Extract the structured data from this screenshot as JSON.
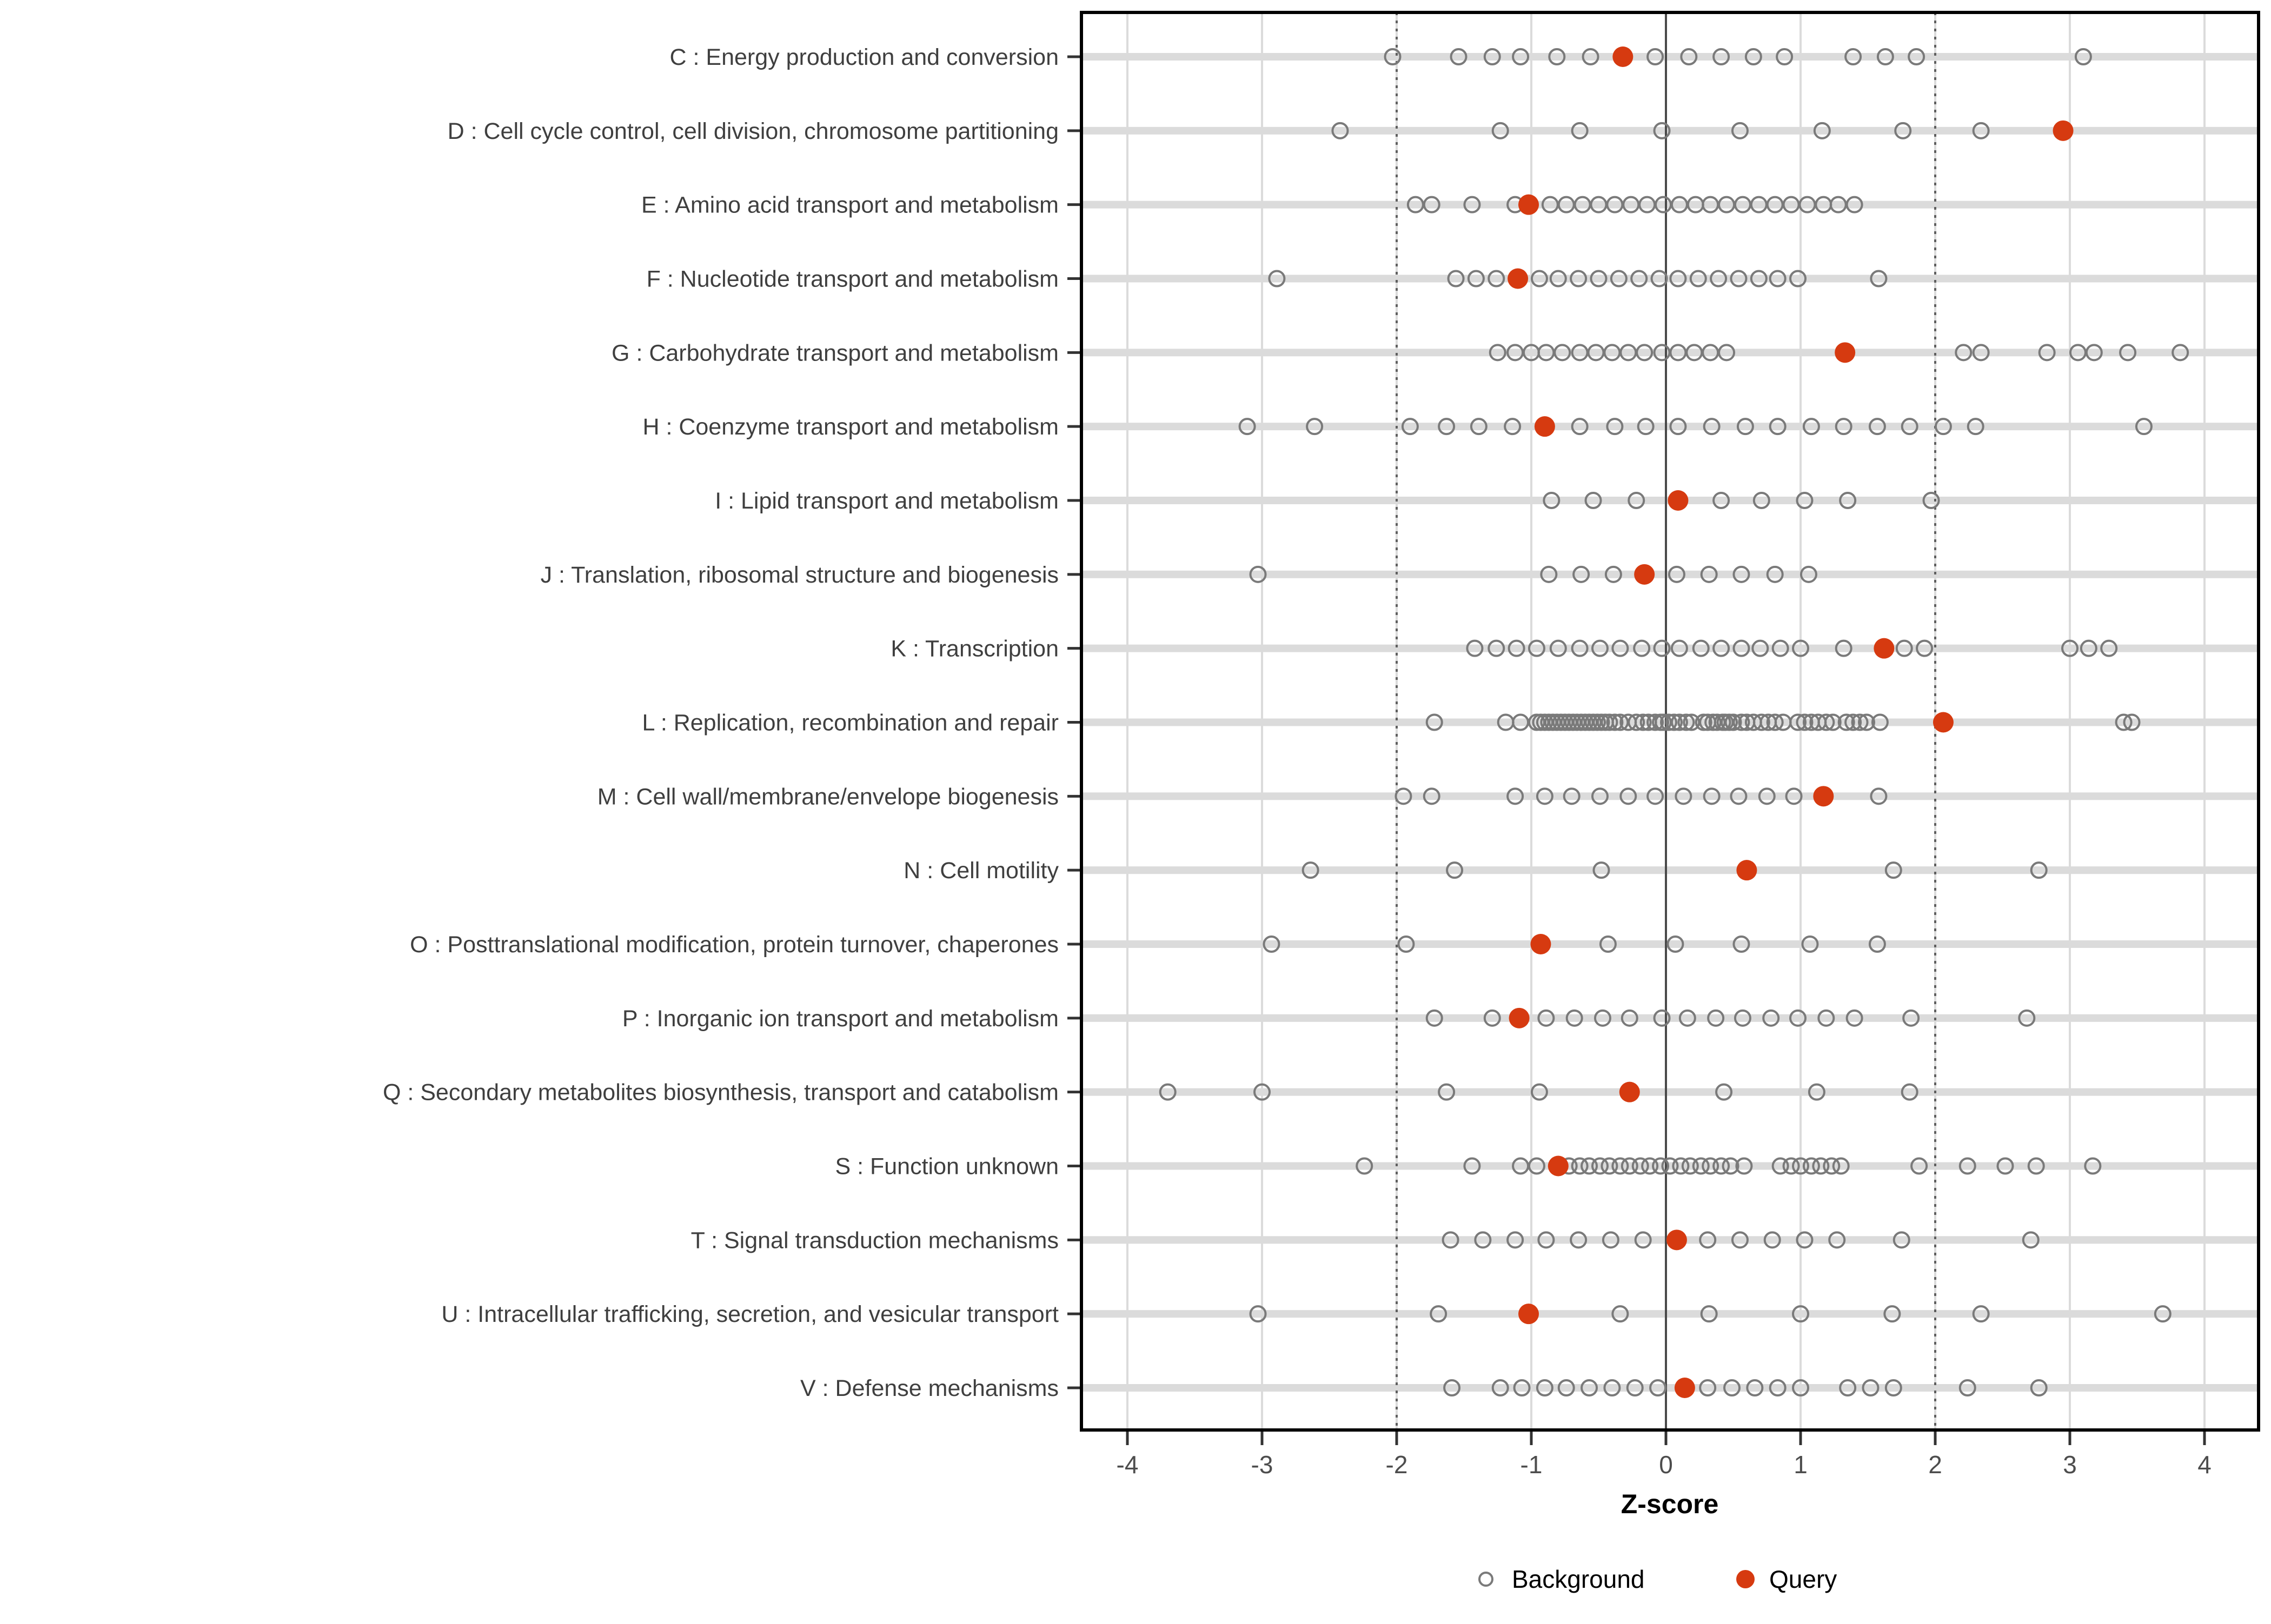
{
  "colors": {
    "query": "#D63A10",
    "background_stroke": "#7a7a7a",
    "grid": "#DBDBDB",
    "row_band": "#DBDBDB",
    "dotted_line": "#5f5f5f",
    "zero_line": "#4a4a4a",
    "panel_border": "#000000",
    "tick": "#333333"
  },
  "legend": {
    "background_label": "Background",
    "query_label": "Query"
  },
  "chart_data": {
    "type": "scatter",
    "title": "",
    "xlabel": "Z-score",
    "ylabel": "",
    "xlim": [
      -4.35,
      4.4
    ],
    "x_ticks": [
      -4,
      -3,
      -2,
      -1,
      0,
      1,
      2,
      3,
      4
    ],
    "grid": true,
    "legend_position": "bottom",
    "reference_lines": {
      "solid": [
        0
      ],
      "dotted": [
        -2,
        2
      ]
    },
    "series_legend": [
      "Background",
      "Query"
    ],
    "categories": [
      {
        "label": "C : Energy production and conversion",
        "query": -0.32,
        "background": [
          -2.03,
          -1.54,
          -1.29,
          -1.08,
          -0.81,
          -0.56,
          -0.08,
          0.17,
          0.41,
          0.65,
          0.88,
          1.39,
          1.63,
          1.86,
          3.1
        ]
      },
      {
        "label": "D : Cell cycle control, cell division, chromosome partitioning",
        "query": 2.95,
        "background": [
          -2.42,
          -1.23,
          -0.64,
          -0.03,
          0.55,
          1.16,
          1.76,
          2.34
        ]
      },
      {
        "label": "E : Amino acid transport and metabolism",
        "query": -1.02,
        "background": [
          -1.86,
          -1.74,
          -1.44,
          -1.12,
          -0.86,
          -0.74,
          -0.62,
          -0.5,
          -0.38,
          -0.26,
          -0.14,
          -0.02,
          0.1,
          0.22,
          0.33,
          0.45,
          0.57,
          0.69,
          0.81,
          0.93,
          1.05,
          1.17,
          1.28,
          1.4
        ]
      },
      {
        "label": "F : Nucleotide transport and metabolism",
        "query": -1.1,
        "background": [
          -2.89,
          -1.56,
          -1.41,
          -1.26,
          -0.94,
          -0.8,
          -0.65,
          -0.5,
          -0.35,
          -0.2,
          -0.05,
          0.09,
          0.24,
          0.39,
          0.54,
          0.69,
          0.83,
          0.98,
          1.58
        ]
      },
      {
        "label": "G : Carbohydrate transport and metabolism",
        "query": 1.33,
        "background": [
          -1.25,
          -1.12,
          -1.0,
          -0.89,
          -0.77,
          -0.64,
          -0.52,
          -0.4,
          -0.28,
          -0.16,
          -0.03,
          0.09,
          0.21,
          0.33,
          0.45,
          2.21,
          2.34,
          2.83,
          3.06,
          3.18,
          3.43,
          3.82
        ]
      },
      {
        "label": "H : Coenzyme transport and metabolism",
        "query": -0.9,
        "background": [
          -3.11,
          -2.61,
          -1.9,
          -1.63,
          -1.39,
          -1.14,
          -0.64,
          -0.38,
          -0.15,
          0.09,
          0.34,
          0.59,
          0.83,
          1.08,
          1.32,
          1.57,
          1.81,
          2.06,
          2.3,
          3.55
        ]
      },
      {
        "label": "I : Lipid transport and metabolism",
        "query": 0.09,
        "background": [
          -0.85,
          -0.54,
          -0.22,
          0.41,
          0.71,
          1.03,
          1.35,
          1.97
        ]
      },
      {
        "label": "J : Translation, ribosomal structure and biogenesis",
        "query": -0.16,
        "background": [
          -3.03,
          -0.87,
          -0.63,
          -0.39,
          0.08,
          0.32,
          0.56,
          0.81,
          1.06
        ]
      },
      {
        "label": "K : Transcription",
        "query": 1.62,
        "background": [
          -1.42,
          -1.26,
          -1.11,
          -0.96,
          -0.8,
          -0.64,
          -0.49,
          -0.34,
          -0.18,
          -0.03,
          0.1,
          0.26,
          0.41,
          0.56,
          0.7,
          0.85,
          1.0,
          1.32,
          1.77,
          1.92,
          3.0,
          3.14,
          3.29
        ]
      },
      {
        "label": "L : Replication, recombination and repair",
        "query": 2.06,
        "background": [
          -1.72,
          -1.19,
          -1.08,
          -0.96,
          -0.93,
          -0.9,
          -0.87,
          -0.84,
          -0.81,
          -0.78,
          -0.75,
          -0.72,
          -0.69,
          -0.66,
          -0.63,
          -0.6,
          -0.57,
          -0.54,
          -0.51,
          -0.48,
          -0.45,
          -0.42,
          -0.38,
          -0.34,
          -0.28,
          -0.22,
          -0.17,
          -0.13,
          -0.08,
          -0.04,
          -0.02,
          0.02,
          0.06,
          0.1,
          0.15,
          0.19,
          0.28,
          0.31,
          0.35,
          0.38,
          0.42,
          0.44,
          0.47,
          0.5,
          0.56,
          0.6,
          0.65,
          0.71,
          0.76,
          0.81,
          0.87,
          0.98,
          1.03,
          1.08,
          1.13,
          1.19,
          1.24,
          1.34,
          1.39,
          1.44,
          1.49,
          1.59,
          3.4,
          3.46
        ]
      },
      {
        "label": "M : Cell wall/membrane/envelope biogenesis",
        "query": 1.17,
        "background": [
          -1.95,
          -1.74,
          -1.12,
          -0.9,
          -0.7,
          -0.49,
          -0.28,
          -0.08,
          0.13,
          0.34,
          0.54,
          0.75,
          0.95,
          1.58
        ]
      },
      {
        "label": "N : Cell motility",
        "query": 0.6,
        "background": [
          -2.64,
          -1.57,
          -0.48,
          1.69,
          2.77
        ]
      },
      {
        "label": "O : Posttranslational modification, protein turnover, chaperones",
        "query": -0.93,
        "background": [
          -2.93,
          -1.93,
          -0.43,
          0.07,
          0.56,
          1.07,
          1.57
        ]
      },
      {
        "label": "P : Inorganic ion transport and metabolism",
        "query": -1.09,
        "background": [
          -1.72,
          -1.29,
          -0.89,
          -0.68,
          -0.47,
          -0.27,
          -0.03,
          0.16,
          0.37,
          0.57,
          0.78,
          0.98,
          1.19,
          1.4,
          1.82,
          2.68
        ]
      },
      {
        "label": "Q : Secondary metabolites biosynthesis, transport and catabolism",
        "query": -0.27,
        "background": [
          -3.7,
          -3.0,
          -1.63,
          -0.94,
          0.43,
          1.12,
          1.81
        ]
      },
      {
        "label": "S : Function unknown",
        "query": -0.8,
        "background": [
          -2.24,
          -1.44,
          -1.08,
          -0.96,
          -0.72,
          -0.64,
          -0.57,
          -0.49,
          -0.42,
          -0.34,
          -0.27,
          -0.19,
          -0.12,
          -0.04,
          0.03,
          0.11,
          0.18,
          0.26,
          0.33,
          0.41,
          0.48,
          0.58,
          0.85,
          0.93,
          1.0,
          1.08,
          1.15,
          1.23,
          1.3,
          1.88,
          2.24,
          2.52,
          2.75,
          3.17
        ]
      },
      {
        "label": "T : Signal transduction mechanisms",
        "query": 0.08,
        "background": [
          -1.6,
          -1.36,
          -1.12,
          -0.89,
          -0.65,
          -0.41,
          -0.17,
          0.31,
          0.55,
          0.79,
          1.03,
          1.27,
          1.75,
          2.71
        ]
      },
      {
        "label": "U : Intracellular trafficking, secretion, and vesicular transport",
        "query": -1.02,
        "background": [
          -3.03,
          -1.69,
          -0.34,
          0.32,
          1.0,
          1.68,
          2.34,
          3.69
        ]
      },
      {
        "label": "V : Defense mechanisms",
        "query": 0.14,
        "background": [
          -1.59,
          -1.23,
          -1.07,
          -0.9,
          -0.74,
          -0.57,
          -0.4,
          -0.23,
          -0.06,
          0.31,
          0.49,
          0.66,
          0.83,
          1.0,
          1.35,
          1.52,
          1.69,
          2.24,
          2.77
        ]
      }
    ]
  }
}
